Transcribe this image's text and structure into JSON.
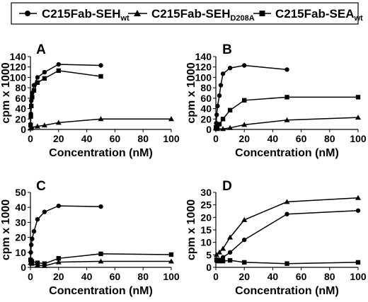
{
  "legend": {
    "items": [
      {
        "label": "C215Fab-SEH",
        "sub": "wt",
        "marker": "circle"
      },
      {
        "label": "C215Fab-SEH",
        "sub": "D208A",
        "marker": "triangle"
      },
      {
        "label": "C215Fab-SEA",
        "sub": "wt",
        "marker": "square"
      }
    ]
  },
  "chart_data": [
    {
      "type": "line",
      "panel_label": "A",
      "xlabel": "Concentration (nM)",
      "ylabel": "cpm x 1000",
      "xlim": [
        0,
        100
      ],
      "ylim": [
        0,
        140
      ],
      "xticks": [
        0,
        20,
        40,
        60,
        80,
        100
      ],
      "yticks": [
        0,
        20,
        40,
        60,
        80,
        100,
        120,
        140
      ],
      "series": [
        {
          "marker": "circle",
          "points": [
            [
              0.1,
              10
            ],
            [
              0.3,
              30
            ],
            [
              0.6,
              55
            ],
            [
              1.2,
              70
            ],
            [
              2.5,
              85
            ],
            [
              5,
              100
            ],
            [
              10,
              110
            ],
            [
              20,
              125
            ],
            [
              50,
              123
            ]
          ]
        },
        {
          "marker": "triangle",
          "points": [
            [
              0.1,
              2
            ],
            [
              1,
              4
            ],
            [
              5,
              6
            ],
            [
              10,
              8
            ],
            [
              20,
              13
            ],
            [
              50,
              20
            ],
            [
              100,
              20
            ]
          ]
        },
        {
          "marker": "square",
          "points": [
            [
              0.1,
              8
            ],
            [
              0.3,
              25
            ],
            [
              0.6,
              45
            ],
            [
              1.2,
              62
            ],
            [
              2.5,
              75
            ],
            [
              5,
              90
            ],
            [
              10,
              98
            ],
            [
              20,
              113
            ],
            [
              50,
              102
            ]
          ]
        }
      ]
    },
    {
      "type": "line",
      "panel_label": "B",
      "xlabel": "Concentration (nM)",
      "ylabel": "cpm x 1000",
      "xlim": [
        0,
        100
      ],
      "ylim": [
        0,
        140
      ],
      "xticks": [
        0,
        20,
        40,
        60,
        80,
        100
      ],
      "yticks": [
        0,
        20,
        40,
        60,
        80,
        100,
        120,
        140
      ],
      "series": [
        {
          "marker": "circle",
          "points": [
            [
              0.3,
              12
            ],
            [
              0.6,
              28
            ],
            [
              1.2,
              45
            ],
            [
              2.5,
              65
            ],
            [
              3.5,
              85
            ],
            [
              5,
              107
            ],
            [
              10,
              118
            ],
            [
              20,
              123
            ],
            [
              50,
              115
            ]
          ]
        },
        {
          "marker": "triangle",
          "points": [
            [
              0.1,
              2
            ],
            [
              1,
              1
            ],
            [
              5,
              1
            ],
            [
              10,
              3
            ],
            [
              20,
              9
            ],
            [
              50,
              18
            ],
            [
              100,
              23
            ]
          ]
        },
        {
          "marker": "square",
          "points": [
            [
              0.1,
              4
            ],
            [
              1,
              2
            ],
            [
              2.5,
              10
            ],
            [
              5,
              20
            ],
            [
              10,
              37
            ],
            [
              20,
              56
            ],
            [
              50,
              62
            ],
            [
              100,
              62
            ]
          ]
        }
      ]
    },
    {
      "type": "line",
      "panel_label": "C",
      "xlabel": "Concentration (nM)",
      "ylabel": "cpm x 1000",
      "xlim": [
        0,
        100
      ],
      "ylim": [
        0,
        50
      ],
      "xticks": [
        0,
        20,
        40,
        60,
        80,
        100
      ],
      "yticks": [
        0,
        10,
        20,
        30,
        40,
        50
      ],
      "series": [
        {
          "marker": "circle",
          "points": [
            [
              0.1,
              4
            ],
            [
              0.3,
              10
            ],
            [
              0.6,
              15
            ],
            [
              1.2,
              19
            ],
            [
              2.5,
              24
            ],
            [
              5,
              32
            ],
            [
              10,
              37
            ],
            [
              20,
              41
            ],
            [
              50,
              40.5
            ]
          ]
        },
        {
          "marker": "triangle",
          "points": [
            [
              0.1,
              3
            ],
            [
              1,
              2.5
            ],
            [
              5,
              1.5
            ],
            [
              10,
              1
            ],
            [
              20,
              3.5
            ],
            [
              50,
              4
            ],
            [
              100,
              4
            ]
          ]
        },
        {
          "marker": "square",
          "points": [
            [
              0.1,
              5
            ],
            [
              1,
              4
            ],
            [
              5,
              3
            ],
            [
              10,
              2.5
            ],
            [
              20,
              6
            ],
            [
              50,
              9
            ],
            [
              100,
              8.5
            ]
          ]
        }
      ]
    },
    {
      "type": "line",
      "panel_label": "D",
      "xlabel": "Concentration (nM)",
      "ylabel": "cpm x 1000",
      "xlim": [
        0,
        100
      ],
      "ylim": [
        0,
        30
      ],
      "xticks": [
        0,
        20,
        40,
        60,
        80,
        100
      ],
      "yticks": [
        0,
        5,
        10,
        15,
        20,
        25,
        30
      ],
      "series": [
        {
          "marker": "circle",
          "points": [
            [
              0.5,
              2.5
            ],
            [
              2.5,
              3
            ],
            [
              5,
              4
            ],
            [
              10,
              6
            ],
            [
              20,
              11
            ],
            [
              50,
              21.3
            ],
            [
              100,
              22.7
            ]
          ]
        },
        {
          "marker": "triangle",
          "points": [
            [
              0.5,
              5
            ],
            [
              2.5,
              6
            ],
            [
              5,
              7.5
            ],
            [
              10,
              12
            ],
            [
              20,
              19
            ],
            [
              50,
              26.2
            ],
            [
              100,
              27.8
            ]
          ]
        },
        {
          "marker": "square",
          "points": [
            [
              0.5,
              3
            ],
            [
              2.5,
              2.5
            ],
            [
              5,
              2.5
            ],
            [
              10,
              2.8
            ],
            [
              20,
              2
            ],
            [
              50,
              1.5
            ],
            [
              100,
              2
            ]
          ]
        }
      ]
    }
  ]
}
